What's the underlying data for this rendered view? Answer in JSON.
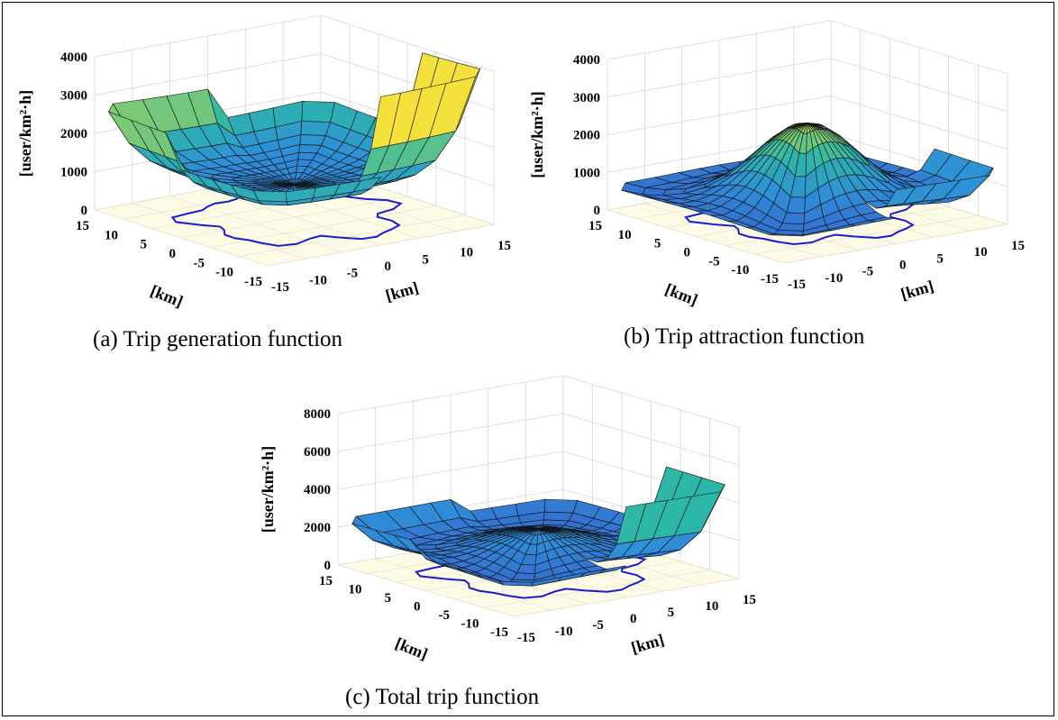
{
  "chart_data": [
    {
      "type": "surface",
      "caption": "(a) Trip generation function",
      "zlabel": "[user/km²·h]",
      "xlabel": "[km]",
      "ylabel": "[km]",
      "xlim": [
        -15,
        15
      ],
      "ylim": [
        -15,
        15
      ],
      "zlim": [
        0,
        4000
      ],
      "zticks": [
        "0",
        "1000",
        "2000",
        "3000",
        "4000"
      ],
      "xticks": [
        "-15",
        "-10",
        "-5",
        "0",
        "5",
        "10",
        "15"
      ],
      "yticks": [
        "15",
        "10",
        "5",
        "0",
        "-5",
        "-10",
        "-15"
      ],
      "grid": true,
      "peak_description": "bowl-shaped, highest at corners",
      "max_z": 3500
    },
    {
      "type": "surface",
      "caption": "(b) Trip attraction function",
      "zlabel": "[user/km²·h]",
      "xlabel": "[km]",
      "ylabel": "[km]",
      "xlim": [
        -15,
        15
      ],
      "ylim": [
        -15,
        15
      ],
      "zlim": [
        0,
        4000
      ],
      "zticks": [
        "0",
        "1000",
        "2000",
        "3000",
        "4000"
      ],
      "xticks": [
        "-15",
        "-10",
        "-5",
        "0",
        "5",
        "10",
        "15"
      ],
      "yticks": [
        "15",
        "10",
        "5",
        "0",
        "-5",
        "-10",
        "-15"
      ],
      "grid": true,
      "max_z": 2800
    },
    {
      "type": "surface",
      "caption": "(c) Total trip function",
      "zlabel": "[user/km²·h]",
      "xlabel": "[km]",
      "ylabel": "[km]",
      "xlim": [
        -15,
        15
      ],
      "ylim": [
        -15,
        15
      ],
      "zlim": [
        0,
        8000
      ],
      "zticks": [
        "0",
        "2000",
        "4000",
        "6000",
        "8000"
      ],
      "xticks": [
        "-15",
        "-10",
        "-5",
        "0",
        "5",
        "10",
        "15"
      ],
      "yticks": [
        "15",
        "10",
        "5",
        "0",
        "-5",
        "-10",
        "-15"
      ],
      "grid": true,
      "max_z": 5300
    }
  ],
  "colors": {
    "low": "#3d7fd8",
    "mid": "#2bb0b8",
    "high": "#f6e23a",
    "floor": "#fdfbe6",
    "boundary": "#1c1ccc"
  }
}
